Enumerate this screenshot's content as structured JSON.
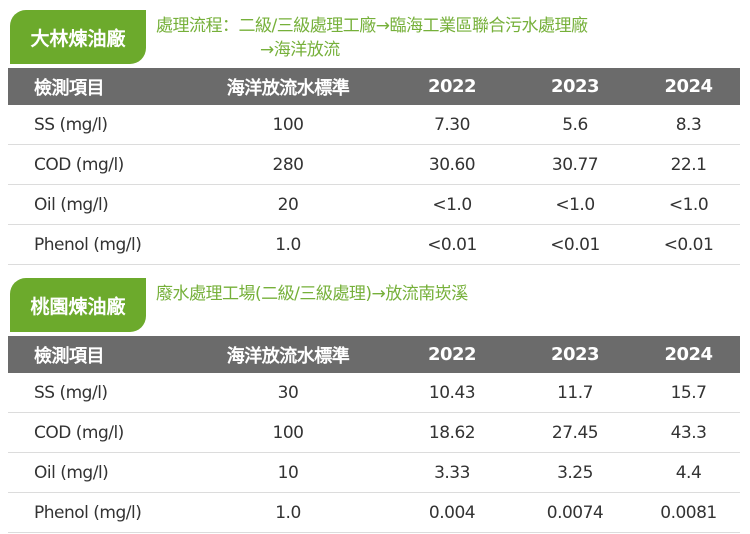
{
  "sections": [
    {
      "name": "大林煉油廠",
      "flow_line1": "處理流程：二級/三級處理工廠→臨海工業區聯合污水處理廠",
      "flow_line2": "→海洋放流",
      "headers": [
        "檢測項目",
        "海洋放流水標準",
        "2022",
        "2023",
        "2024"
      ],
      "rows": [
        [
          "SS (mg/l)",
          "100",
          "7.30",
          "5.6",
          "8.3"
        ],
        [
          "COD (mg/l)",
          "280",
          "30.60",
          "30.77",
          "22.1"
        ],
        [
          "Oil (mg/l)",
          "20",
          "<1.0",
          "<1.0",
          "<1.0"
        ],
        [
          "Phenol (mg/l)",
          "1.0",
          "<0.01",
          "<0.01",
          "<0.01"
        ]
      ]
    },
    {
      "name": "桃園煉油廠",
      "flow_line1": "廢水處理工場(二級/三級處理)→放流南崁溪",
      "flow_line2": "",
      "headers": [
        "檢測項目",
        "海洋放流水標準",
        "2022",
        "2023",
        "2024"
      ],
      "rows": [
        [
          "SS (mg/l)",
          "30",
          "10.43",
          "11.7",
          "15.7"
        ],
        [
          "COD (mg/l)",
          "100",
          "18.62",
          "27.45",
          "43.3"
        ],
        [
          "Oil (mg/l)",
          "10",
          "3.33",
          "3.25",
          "4.4"
        ],
        [
          "Phenol (mg/l)",
          "1.0",
          "0.004",
          "0.0074",
          "0.0081"
        ]
      ]
    }
  ]
}
